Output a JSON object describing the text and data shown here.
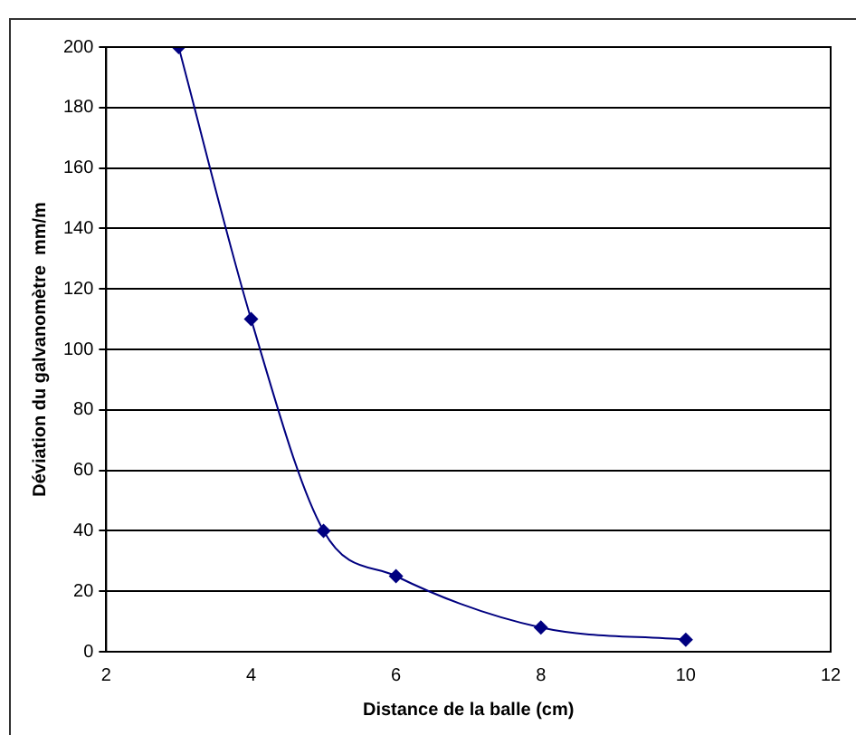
{
  "chart_data": {
    "type": "line",
    "xlabel": "Distance de la balle (cm)",
    "ylabel": "Déviation du galvanomètre  mm/m",
    "x": [
      3,
      4,
      5,
      6,
      8,
      10
    ],
    "series": [
      {
        "color": "#000080",
        "values": [
          200,
          110,
          40,
          25,
          8,
          4
        ]
      }
    ],
    "xlim": [
      2,
      12
    ],
    "xticks": [
      2,
      4,
      6,
      8,
      10,
      12
    ],
    "ylim": [
      0,
      200
    ],
    "yticks": [
      0,
      20,
      40,
      60,
      80,
      100,
      120,
      140,
      160,
      180,
      200
    ],
    "grid": "y",
    "legend": false,
    "marker": "diamond",
    "line_style": "solid"
  }
}
